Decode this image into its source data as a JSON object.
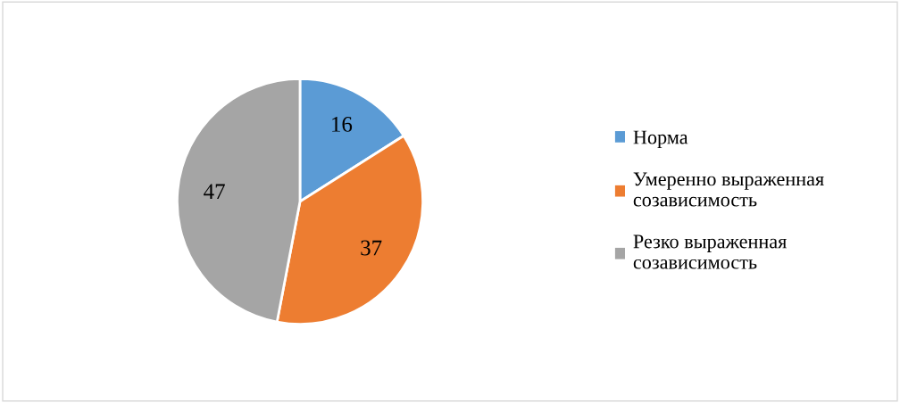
{
  "chart_data": {
    "type": "pie",
    "categories": [
      "Норма",
      "Умеренно выраженная\nсозависимость",
      "Резко выраженная\nсозависимость"
    ],
    "values": [
      16,
      37,
      47
    ],
    "colors": [
      "#5b9bd5",
      "#ed7d31",
      "#a5a5a5"
    ],
    "data_labels": true,
    "legend": "right"
  }
}
